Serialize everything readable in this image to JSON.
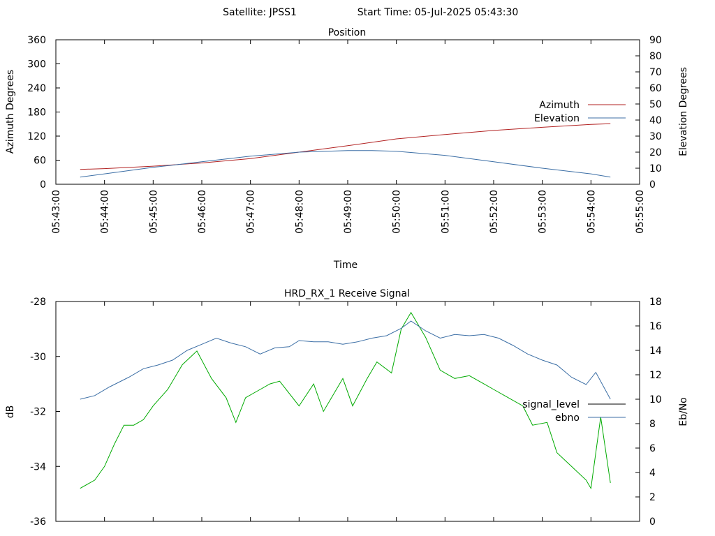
{
  "header": {
    "satellite": "Satellite: JPSS1",
    "start_time": "Start Time: 05-Jul-2025 05:43:30"
  },
  "chart_data": [
    {
      "type": "line",
      "title": "Position",
      "xlabel": "Time",
      "ylabel": "Azimuth Degrees",
      "y2label": "Elevation Degrees",
      "x_ticks": [
        "05:43:00",
        "05:44:00",
        "05:45:00",
        "05:46:00",
        "05:47:00",
        "05:48:00",
        "05:49:00",
        "05:50:00",
        "05:51:00",
        "05:52:00",
        "05:53:00",
        "05:54:00",
        "05:55:00"
      ],
      "x_ticks_min": [
        0,
        1,
        2,
        3,
        4,
        5,
        6,
        7,
        8,
        9,
        10,
        11,
        12
      ],
      "xlim_min": [
        0,
        12
      ],
      "ylim": [
        0,
        360
      ],
      "y_ticks": [
        0,
        60,
        120,
        180,
        240,
        300,
        360
      ],
      "y2lim": [
        0,
        90
      ],
      "y2_ticks": [
        0,
        10,
        20,
        30,
        40,
        50,
        60,
        70,
        80,
        90
      ],
      "legend": "right",
      "series": [
        {
          "name": "Azimuth",
          "axis": "y",
          "color": "#b22222",
          "x_min": [
            0.5,
            1,
            2,
            3,
            4,
            5,
            6,
            7,
            8,
            9,
            10,
            11,
            11.4
          ],
          "values": [
            37,
            39,
            45,
            53,
            64,
            80,
            96,
            113,
            124,
            134,
            142,
            149,
            151
          ]
        },
        {
          "name": "Elevation",
          "axis": "y2",
          "color": "#3b6ea5",
          "x_min": [
            0.5,
            1,
            2,
            3,
            4,
            5,
            6,
            6.5,
            7,
            8,
            9,
            10,
            11,
            11.4
          ],
          "values": [
            4.5,
            6.5,
            10.5,
            14,
            17.5,
            20,
            21,
            21,
            20.5,
            18,
            14,
            10,
            6.5,
            4.5
          ]
        }
      ]
    },
    {
      "type": "line",
      "title": "HRD_RX_1 Receive Signal",
      "ylabel": "dB",
      "y2label": "Eb/No",
      "xlim_min": [
        0,
        12
      ],
      "ylim": [
        -36,
        -28
      ],
      "y_ticks": [
        -36,
        -34,
        -32,
        -30,
        -28
      ],
      "y2lim": [
        0,
        18
      ],
      "y2_ticks": [
        0,
        2,
        4,
        6,
        8,
        10,
        12,
        14,
        16,
        18
      ],
      "legend": "right",
      "series": [
        {
          "name": "signal_level",
          "axis": "y",
          "color": "#00aa00",
          "legend_color": "#000000",
          "x_min": [
            0.5,
            0.8,
            1.0,
            1.2,
            1.4,
            1.6,
            1.8,
            2.0,
            2.3,
            2.6,
            2.9,
            3.2,
            3.5,
            3.7,
            3.9,
            4.2,
            4.4,
            4.6,
            5.0,
            5.3,
            5.5,
            5.7,
            5.9,
            6.1,
            6.4,
            6.6,
            6.9,
            7.1,
            7.3,
            7.6,
            7.9,
            8.2,
            8.5,
            8.8,
            9.0,
            9.3,
            9.6,
            9.8,
            10.1,
            10.3,
            10.6,
            10.9,
            11.0,
            11.2,
            11.4
          ],
          "values": [
            -34.8,
            -34.5,
            -34.0,
            -33.2,
            -32.5,
            -32.5,
            -32.3,
            -31.8,
            -31.2,
            -30.3,
            -29.8,
            -30.8,
            -31.5,
            -32.4,
            -31.5,
            -31.2,
            -31.0,
            -30.9,
            -31.8,
            -31.0,
            -32.0,
            -31.4,
            -30.8,
            -31.8,
            -30.8,
            -30.2,
            -30.6,
            -29.0,
            -28.4,
            -29.3,
            -30.5,
            -30.8,
            -30.7,
            -31.0,
            -31.2,
            -31.5,
            -31.8,
            -32.5,
            -32.4,
            -33.5,
            -34.0,
            -34.5,
            -34.8,
            -32.2,
            -34.6
          ]
        },
        {
          "name": "ebno",
          "axis": "y2",
          "color": "#3b6ea5",
          "x_min": [
            0.5,
            0.8,
            1.1,
            1.5,
            1.8,
            2.1,
            2.4,
            2.7,
            3.0,
            3.3,
            3.6,
            3.9,
            4.2,
            4.5,
            4.8,
            5.0,
            5.3,
            5.6,
            5.9,
            6.2,
            6.5,
            6.8,
            7.1,
            7.3,
            7.6,
            7.9,
            8.2,
            8.5,
            8.8,
            9.1,
            9.4,
            9.7,
            10.0,
            10.3,
            10.6,
            10.9,
            11.1,
            11.4
          ],
          "values": [
            10.0,
            10.3,
            11.0,
            11.8,
            12.5,
            12.8,
            13.2,
            14.0,
            14.5,
            15.0,
            14.6,
            14.3,
            13.7,
            14.2,
            14.3,
            14.8,
            14.7,
            14.7,
            14.5,
            14.7,
            15.0,
            15.2,
            15.8,
            16.4,
            15.6,
            15.0,
            15.3,
            15.2,
            15.3,
            15.0,
            14.4,
            13.7,
            13.2,
            12.8,
            11.8,
            11.2,
            12.2,
            10.0
          ]
        }
      ]
    }
  ]
}
